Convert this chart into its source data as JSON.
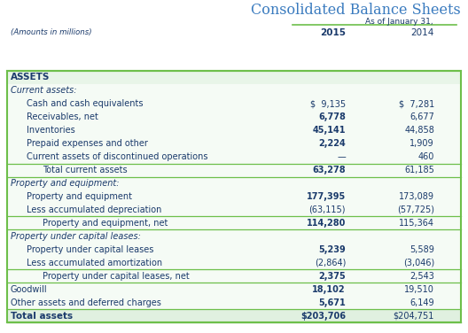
{
  "title": "Consolidated Balance Sheets",
  "subtitle": "As of January 31,",
  "header_label": "(Amounts in millions)",
  "col1_header": "2015",
  "col2_header": "2014",
  "bg_color": "#ffffff",
  "table_bg": "#f5fbf5",
  "title_color": "#3a7bbf",
  "body_text_color": "#1a3a6b",
  "green_color": "#6dbf4a",
  "assets_bg": "#e8f5e8",
  "total_bg": "#e0f0e0",
  "rows": [
    {
      "label": "ASSETS",
      "val1": "",
      "val2": "",
      "style": "section_header",
      "indent": 0
    },
    {
      "label": "Current assets:",
      "val1": "",
      "val2": "",
      "style": "italic",
      "indent": 0
    },
    {
      "label": "Cash and cash equivalents",
      "val1": "$  9,135",
      "val2": "$  7,281",
      "style": "normal",
      "indent": 1
    },
    {
      "label": "Receivables, net",
      "val1": "6,778",
      "val2": "6,677",
      "style": "normal_bold1",
      "indent": 1
    },
    {
      "label": "Inventories",
      "val1": "45,141",
      "val2": "44,858",
      "style": "normal_bold1",
      "indent": 1
    },
    {
      "label": "Prepaid expenses and other",
      "val1": "2,224",
      "val2": "1,909",
      "style": "normal_bold1",
      "indent": 1
    },
    {
      "label": "Current assets of discontinued operations",
      "val1": "—",
      "val2": "460",
      "style": "normal",
      "indent": 1
    },
    {
      "label": "Total current assets",
      "val1": "63,278",
      "val2": "61,185",
      "style": "subtotal",
      "indent": 2
    },
    {
      "label": "Property and equipment:",
      "val1": "",
      "val2": "",
      "style": "italic",
      "indent": 0
    },
    {
      "label": "Property and equipment",
      "val1": "177,395",
      "val2": "173,089",
      "style": "normal_bold1",
      "indent": 1
    },
    {
      "label": "Less accumulated depreciation",
      "val1": "(63,115)",
      "val2": "(57,725)",
      "style": "normal",
      "indent": 1
    },
    {
      "label": "Property and equipment, net",
      "val1": "114,280",
      "val2": "115,364",
      "style": "subtotal",
      "indent": 2
    },
    {
      "label": "Property under capital leases:",
      "val1": "",
      "val2": "",
      "style": "italic",
      "indent": 0
    },
    {
      "label": "Property under capital leases",
      "val1": "5,239",
      "val2": "5,589",
      "style": "normal_bold1",
      "indent": 1
    },
    {
      "label": "Less accumulated amortization",
      "val1": "(2,864)",
      "val2": "(3,046)",
      "style": "normal",
      "indent": 1
    },
    {
      "label": "Property under capital leases, net",
      "val1": "2,375",
      "val2": "2,543",
      "style": "subtotal",
      "indent": 2
    },
    {
      "label": "Goodwill",
      "val1": "18,102",
      "val2": "19,510",
      "style": "normal_bold1",
      "indent": 0
    },
    {
      "label": "Other assets and deferred charges",
      "val1": "5,671",
      "val2": "6,149",
      "style": "normal_bold1",
      "indent": 0
    },
    {
      "label": "Total assets",
      "val1": "$203,706",
      "val2": "$204,751",
      "style": "total",
      "indent": 0
    }
  ]
}
